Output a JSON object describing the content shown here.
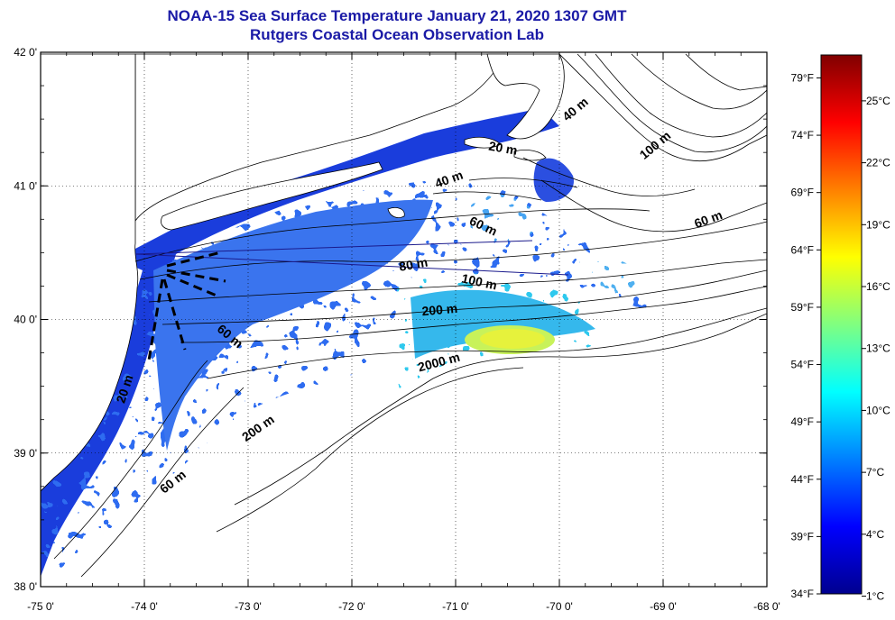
{
  "title": {
    "line1": "NOAA-15 Sea Surface Temperature January 21, 2020 1307 GMT",
    "line2": "Rutgers Coastal Ocean Observation Lab"
  },
  "map": {
    "lon_range": [
      -75,
      -68
    ],
    "lat_range": [
      38,
      42
    ],
    "lon_ticks": [
      "-75 0'",
      "-74 0'",
      "-73 0'",
      "-72 0'",
      "-71 0'",
      "-70 0'",
      "-69 0'",
      "-68 0'"
    ],
    "lat_ticks": [
      "42 0'",
      "41 0'",
      "40 0'",
      "39 0'",
      "38 0'"
    ],
    "gridlines": "dotted",
    "colors": {
      "land": "#ffffff",
      "no_data": "#ffffff",
      "coast": "#000000",
      "frame": "#000000"
    }
  },
  "isobath_labels": [
    {
      "text": "20 m",
      "lon": -74.15,
      "lat": 39.47,
      "rot": -72
    },
    {
      "text": "40 m",
      "lon": -69.82,
      "lat": 41.55,
      "rot": -40
    },
    {
      "text": "20 m",
      "lon": -70.55,
      "lat": 41.25,
      "rot": 10
    },
    {
      "text": "100 m",
      "lon": -69.05,
      "lat": 41.28,
      "rot": -40
    },
    {
      "text": "40 m",
      "lon": -71.05,
      "lat": 41.02,
      "rot": -20
    },
    {
      "text": "60 m",
      "lon": -70.75,
      "lat": 40.67,
      "rot": 25
    },
    {
      "text": "60 m",
      "lon": -68.55,
      "lat": 40.72,
      "rot": -20
    },
    {
      "text": "80 m",
      "lon": -71.4,
      "lat": 40.38,
      "rot": -10
    },
    {
      "text": "100 m",
      "lon": -70.78,
      "lat": 40.25,
      "rot": 12
    },
    {
      "text": "200 m",
      "lon": -71.15,
      "lat": 40.04,
      "rot": -5
    },
    {
      "text": "60 m",
      "lon": -73.2,
      "lat": 39.85,
      "rot": 40
    },
    {
      "text": "2000 m",
      "lon": -71.15,
      "lat": 39.65,
      "rot": -15
    },
    {
      "text": "200 m",
      "lon": -72.88,
      "lat": 39.16,
      "rot": -35
    },
    {
      "text": "60 m",
      "lon": -73.7,
      "lat": 38.76,
      "rot": -38
    }
  ],
  "colorbar": {
    "fahrenheit_labels": [
      "79°F",
      "74°F",
      "69°F",
      "64°F",
      "59°F",
      "54°F",
      "49°F",
      "44°F",
      "39°F",
      "34°F"
    ],
    "celsius_labels": [
      "25°C",
      "22°C",
      "19°C",
      "16°C",
      "13°C",
      "10°C",
      "7°C",
      "4°C",
      "1°C"
    ],
    "f_range": [
      34,
      81
    ],
    "c_top": 27.2,
    "palette": [
      "#00008f",
      "#0000ff",
      "#0080ff",
      "#00ffff",
      "#80ff80",
      "#ffff00",
      "#ff8000",
      "#ff0000",
      "#800000"
    ]
  }
}
